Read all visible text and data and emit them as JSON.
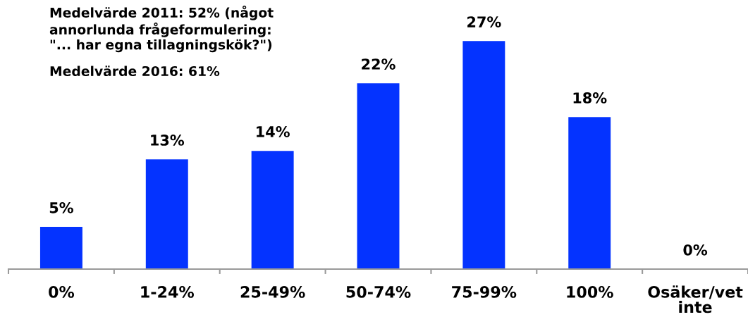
{
  "chart_data": {
    "type": "bar",
    "categories": [
      "0%",
      "1-24%",
      "25-49%",
      "50-74%",
      "75-99%",
      "100%",
      "Osäker/vet\ninte"
    ],
    "values": [
      5,
      13,
      14,
      22,
      27,
      18,
      0
    ],
    "value_labels": [
      "5%",
      "13%",
      "14%",
      "22%",
      "27%",
      "18%",
      "0%"
    ],
    "color": "#0433ff",
    "annotations": [
      "Medelvärde 2011: 52% (något\nannorlunda frågeformulering:\n\"... har egna tillagningskök?\")",
      "Medelvärde 2016: 61%"
    ]
  }
}
